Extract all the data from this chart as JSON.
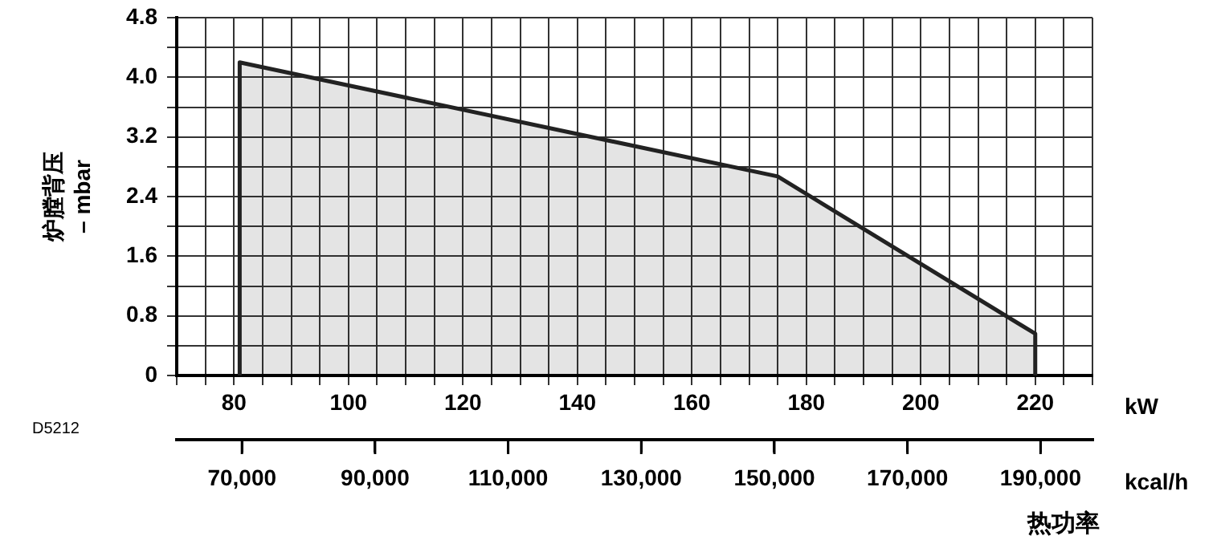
{
  "chart_data": {
    "type": "area",
    "xlabel": "kW",
    "ylabel": "炉膛背压\n– mbar",
    "x2label": "kcal/h",
    "annotations": [
      "D5212",
      "热功率"
    ],
    "x": [
      81,
      81,
      175,
      220,
      220
    ],
    "series": [
      {
        "color": "#222222",
        "values": [
          0,
          4.2,
          2.67,
          0.56,
          0
        ]
      }
    ],
    "xlim": [
      70,
      230
    ],
    "ylim": [
      0,
      4.8
    ],
    "xticks": [
      {
        "value": 70,
        "label": null
      },
      {
        "value": 75,
        "label": null
      },
      80,
      {
        "value": 85,
        "label": null
      },
      {
        "value": 90,
        "label": null
      },
      {
        "value": 95,
        "label": null
      },
      100,
      {
        "value": 105,
        "label": null
      },
      {
        "value": 110,
        "label": null
      },
      {
        "value": 115,
        "label": null
      },
      120,
      {
        "value": 125,
        "label": null
      },
      {
        "value": 130,
        "label": null
      },
      {
        "value": 135,
        "label": null
      },
      140,
      {
        "value": 145,
        "label": null
      },
      {
        "value": 150,
        "label": null
      },
      {
        "value": 155,
        "label": null
      },
      160,
      {
        "value": 165,
        "label": null
      },
      {
        "value": 170,
        "label": null
      },
      {
        "value": 175,
        "label": null
      },
      180,
      {
        "value": 185,
        "label": null
      },
      {
        "value": 190,
        "label": null
      },
      {
        "value": 195,
        "label": null
      },
      200,
      {
        "value": 205,
        "label": null
      },
      {
        "value": 210,
        "label": null
      },
      {
        "value": 215,
        "label": null
      },
      220,
      {
        "value": 225,
        "label": null
      },
      {
        "value": 230,
        "label": null
      }
    ],
    "yticks": [
      0,
      {
        "value": 0.4,
        "label": null
      },
      0.8,
      {
        "value": 1.2,
        "label": null
      },
      1.6,
      {
        "value": 2,
        "label": null
      },
      2.4,
      {
        "value": 2.8,
        "label": null
      },
      3.2,
      {
        "value": 3.6,
        "label": null
      },
      {
        "value": 4,
        "label": "4.0"
      },
      {
        "value": 4.4,
        "label": null
      },
      4.8
    ],
    "x2lim": [
      60200,
      197800
    ],
    "x2ticks": [
      {
        "value": 70000,
        "label": "70,000"
      },
      {
        "value": 90000,
        "label": "90,000"
      },
      {
        "value": 110000,
        "label": "110,000"
      },
      {
        "value": 130000,
        "label": "130,000"
      },
      {
        "value": 150000,
        "label": "150,000"
      },
      {
        "value": 170000,
        "label": "170,000"
      },
      {
        "value": 190000,
        "label": "190,000"
      }
    ],
    "grid": true
  }
}
